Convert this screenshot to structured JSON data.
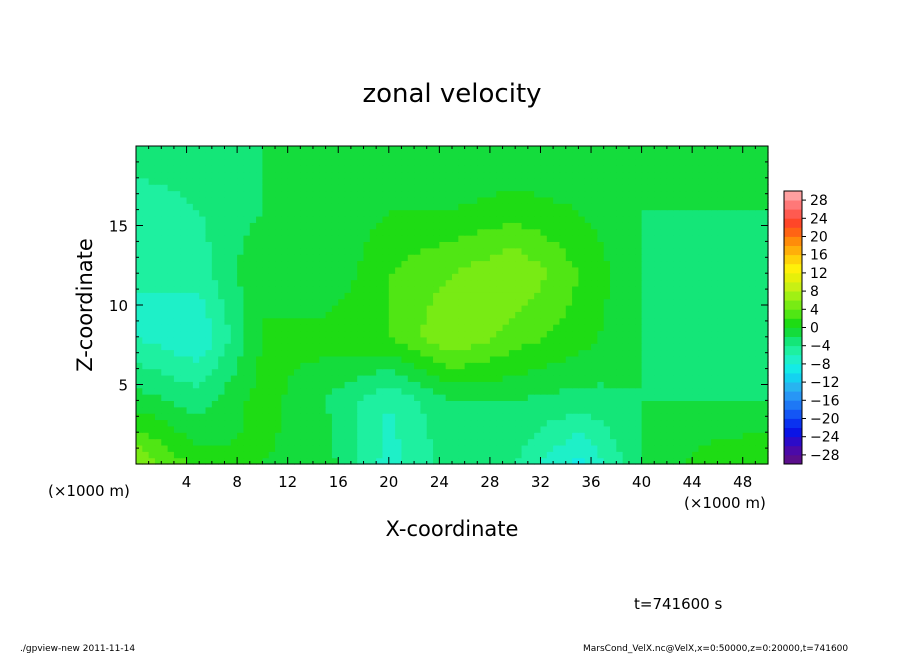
{
  "chart_data": {
    "type": "heatmap",
    "title": "zonal velocity",
    "xlabel": "X-coordinate",
    "ylabel": "Z-coordinate",
    "x_unit_label": "(×1000 m)",
    "y_unit_label": "(×1000 m)",
    "xlim": [
      0,
      50
    ],
    "ylim": [
      0,
      20
    ],
    "x_ticks": [
      4,
      8,
      12,
      16,
      20,
      24,
      28,
      32,
      36,
      40,
      44,
      48
    ],
    "y_ticks": [
      5,
      10,
      15
    ],
    "colorbar": {
      "levels": [
        -30,
        -28,
        -26,
        -24,
        -22,
        -20,
        -18,
        -16,
        -14,
        -12,
        -10,
        -8,
        -6,
        -4,
        -2,
        0,
        2,
        4,
        6,
        8,
        10,
        12,
        14,
        16,
        18,
        20,
        22,
        24,
        26,
        28,
        30
      ],
      "labels": [
        28,
        24,
        20,
        16,
        12,
        8,
        4,
        0,
        -4,
        -8,
        -12,
        -16,
        -20,
        -24,
        -28
      ],
      "colors": [
        "#5a0e8c",
        "#4b0aa8",
        "#2c0bc8",
        "#0a14e6",
        "#0a32f0",
        "#1456f5",
        "#1e78f5",
        "#2896f5",
        "#28b4f0",
        "#14d2f0",
        "#14ebe6",
        "#1ef0c8",
        "#1ef0a0",
        "#14e678",
        "#14dc3c",
        "#1edc14",
        "#50e614",
        "#78eb14",
        "#a0f014",
        "#c8f014",
        "#e6f00a",
        "#fff00a",
        "#ffd20a",
        "#ffaf0a",
        "#ff8c0a",
        "#ff6414",
        "#ff4628",
        "#ff5a50",
        "#ff7878",
        "#ffa0a0"
      ]
    },
    "field_grid": {
      "x": [
        0,
        5,
        10,
        15,
        20,
        25,
        30,
        35,
        40,
        45,
        50
      ],
      "z": [
        0,
        4,
        8,
        12,
        16,
        20
      ],
      "values": [
        [
          6,
          1,
          0,
          -1,
          -7,
          -3,
          -4,
          -9,
          -2,
          1,
          2
        ],
        [
          -1,
          -3,
          1,
          -2,
          -6,
          -2,
          -2,
          -3,
          -2,
          -2,
          -2
        ],
        [
          -6,
          -8,
          0,
          1,
          2,
          6,
          3,
          1,
          -2,
          -3,
          -3
        ],
        [
          -6,
          -5,
          0,
          -2,
          2,
          4,
          6,
          2,
          -2,
          -3,
          -3
        ],
        [
          -6,
          -4,
          -2,
          -2,
          0,
          0,
          1,
          0,
          -2,
          -2,
          -2
        ],
        [
          -2,
          -2,
          -2,
          -2,
          -2,
          -2,
          -2,
          -2,
          -2,
          -2,
          -2
        ]
      ]
    }
  },
  "time_label": "t=741600 s",
  "footer": {
    "left": "./gpview-new  2011-11-14",
    "right": "MarsCond_VelX.nc@VelX,x=0:50000,z=0:20000,t=741600"
  }
}
